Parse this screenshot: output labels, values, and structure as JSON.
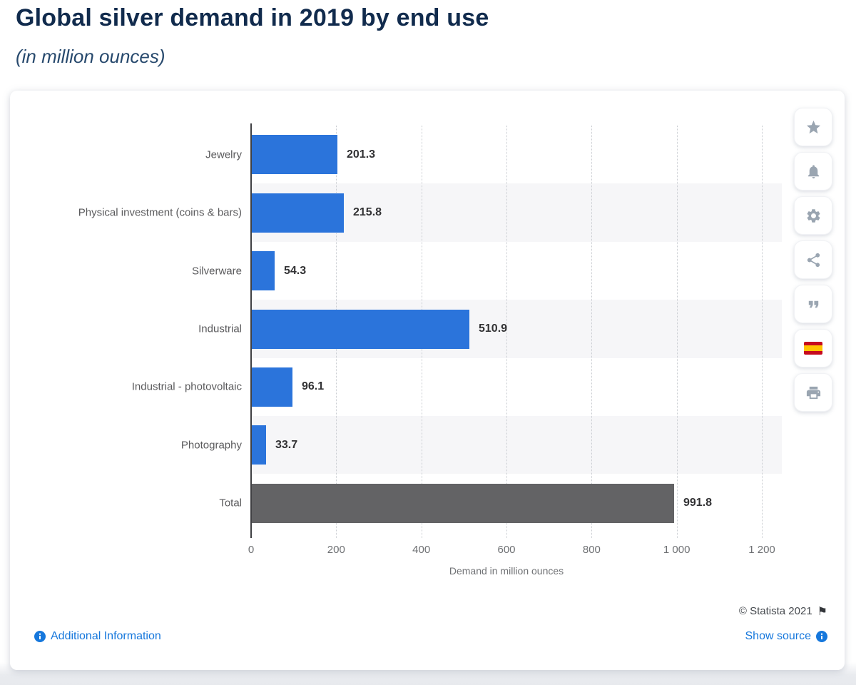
{
  "header": {
    "title": "Global silver demand in 2019 by end use",
    "subtitle": "(in million ounces)"
  },
  "chart_data": {
    "type": "bar",
    "orientation": "horizontal",
    "title": "Global silver demand in 2019 by end use",
    "subtitle": "(in million ounces)",
    "categories": [
      "Jewelry",
      "Physical investment (coins & bars)",
      "Silverware",
      "Industrial",
      "Industrial - photovoltaic",
      "Photography",
      "Total"
    ],
    "values": [
      201.3,
      215.8,
      54.3,
      510.9,
      96.1,
      33.7,
      991.8
    ],
    "value_labels": [
      "201.3",
      "215.8",
      "54.3",
      "510.9",
      "96.1",
      "33.7",
      "991.8"
    ],
    "xlabel": "Demand in million ounces",
    "xlim": [
      0,
      1247
    ],
    "xticks": [
      0,
      200,
      400,
      600,
      800,
      1000,
      1200
    ],
    "xtick_labels": [
      "0",
      "200",
      "400",
      "600",
      "800",
      "1 000",
      "1 200"
    ],
    "grid": "vertical-dotted",
    "legend": "none",
    "bar_color": "#2b74db",
    "total_bar_color": "#636365",
    "row_stripe_color": "#f6f6f8"
  },
  "toolbar": {
    "buttons": [
      {
        "name": "favorite",
        "icon": "star-icon"
      },
      {
        "name": "notifications",
        "icon": "bell-icon"
      },
      {
        "name": "settings",
        "icon": "gear-icon"
      },
      {
        "name": "share",
        "icon": "share-icon"
      },
      {
        "name": "cite",
        "icon": "quote-icon"
      },
      {
        "name": "language-spanish",
        "icon": "spain-flag-icon"
      },
      {
        "name": "print",
        "icon": "printer-icon"
      }
    ]
  },
  "footer": {
    "copyright": "© Statista 2021",
    "additional_info_label": "Additional Information",
    "show_source_label": "Show source"
  },
  "colors": {
    "accent_blue": "#2b74db",
    "total_gray": "#636365",
    "link_blue": "#1577dc",
    "title_navy": "#112b4d"
  }
}
